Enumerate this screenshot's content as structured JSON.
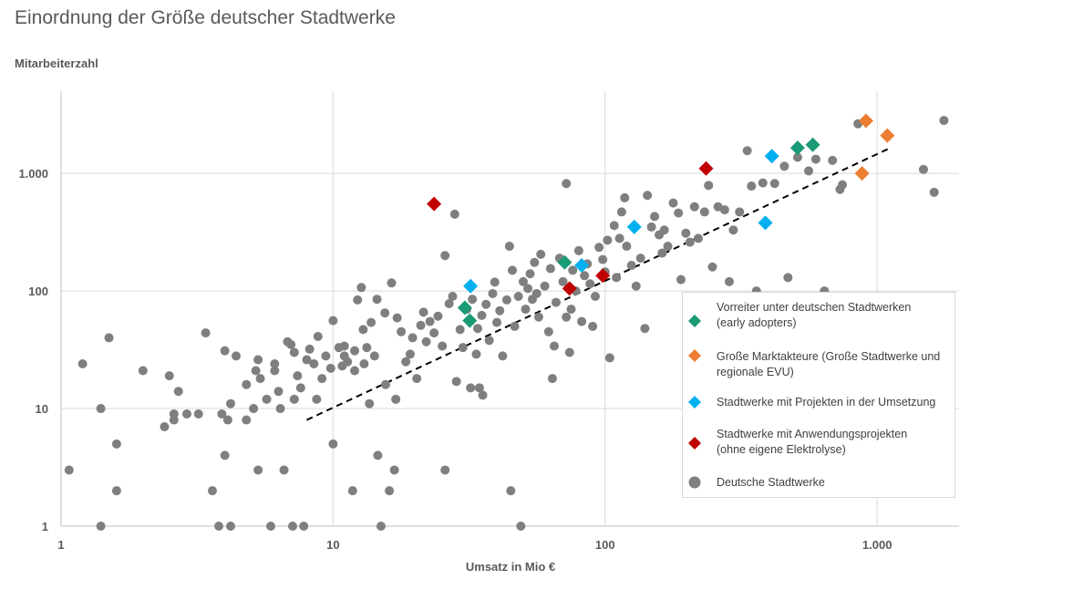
{
  "title": "Einordnung der Größe deutscher Stadtwerke",
  "chart_data": {
    "type": "scatter",
    "title": "Einordnung der Größe deutscher Stadtwerke",
    "xlabel": "Umsatz in Mio €",
    "ylabel": "Mitarbeiterzahl",
    "x_scale": "log",
    "y_scale": "log",
    "xlim": [
      1,
      2000
    ],
    "ylim": [
      1,
      5000
    ],
    "x_ticks": [
      {
        "value": 1,
        "label": "1"
      },
      {
        "value": 10,
        "label": "10"
      },
      {
        "value": 100,
        "label": "100"
      },
      {
        "value": 1000,
        "label": "1.000"
      }
    ],
    "y_ticks": [
      {
        "value": 1,
        "label": "1"
      },
      {
        "value": 10,
        "label": "10"
      },
      {
        "value": 100,
        "label": "100"
      },
      {
        "value": 1000,
        "label": "1.000"
      }
    ],
    "grid": "vertical and horizontal major gridlines",
    "legend_position": "lower-right",
    "trendline": {
      "style": "dashed",
      "color": "#000000",
      "from": [
        8,
        8
      ],
      "to": [
        1120,
        1650
      ]
    },
    "series": [
      {
        "name": "Deutsche Stadtwerke",
        "marker": "circle",
        "color": "#7f7f7f",
        "points": [
          [
            1.07,
            3
          ],
          [
            1.2,
            24
          ],
          [
            1.4,
            10
          ],
          [
            1.4,
            1
          ],
          [
            1.5,
            40
          ],
          [
            1.6,
            5
          ],
          [
            1.6,
            2
          ],
          [
            2,
            21
          ],
          [
            2.4,
            7
          ],
          [
            2.5,
            19
          ],
          [
            2.6,
            9
          ],
          [
            2.6,
            8
          ],
          [
            2.7,
            14
          ],
          [
            2.9,
            9
          ],
          [
            3.2,
            9
          ],
          [
            3.4,
            44
          ],
          [
            3.6,
            2
          ],
          [
            3.8,
            1
          ],
          [
            3.9,
            9
          ],
          [
            4,
            31
          ],
          [
            4,
            4
          ],
          [
            4.1,
            8
          ],
          [
            4.2,
            1
          ],
          [
            4.2,
            11
          ],
          [
            4.4,
            28
          ],
          [
            4.8,
            8
          ],
          [
            4.8,
            16
          ],
          [
            5.1,
            10
          ],
          [
            5.2,
            21
          ],
          [
            5.3,
            26
          ],
          [
            5.4,
            18
          ],
          [
            5.3,
            3
          ],
          [
            5.7,
            12
          ],
          [
            5.9,
            1
          ],
          [
            6.1,
            24
          ],
          [
            6.1,
            21
          ],
          [
            6.3,
            14
          ],
          [
            6.4,
            10
          ],
          [
            6.6,
            3
          ],
          [
            6.8,
            37
          ],
          [
            7,
            35
          ],
          [
            7.1,
            1
          ],
          [
            7.2,
            12
          ],
          [
            7.2,
            30
          ],
          [
            7.4,
            19
          ],
          [
            7.6,
            15
          ],
          [
            7.8,
            1
          ],
          [
            8,
            26
          ],
          [
            8.2,
            32
          ],
          [
            8.5,
            24
          ],
          [
            8.7,
            12
          ],
          [
            8.8,
            41
          ],
          [
            9.1,
            18
          ],
          [
            9.4,
            28
          ],
          [
            9.8,
            22
          ],
          [
            10,
            56
          ],
          [
            10,
            5
          ],
          [
            10.5,
            33
          ],
          [
            10.8,
            23
          ],
          [
            11,
            28
          ],
          [
            11,
            34
          ],
          [
            11.3,
            25
          ],
          [
            11.8,
            2
          ],
          [
            12,
            21
          ],
          [
            12,
            31
          ],
          [
            12.3,
            84
          ],
          [
            12.7,
            107
          ],
          [
            12.9,
            47
          ],
          [
            13,
            24
          ],
          [
            13.3,
            33
          ],
          [
            13.6,
            11
          ],
          [
            13.8,
            54
          ],
          [
            14.2,
            28
          ],
          [
            14.5,
            85
          ],
          [
            14.6,
            4
          ],
          [
            15,
            1
          ],
          [
            15.5,
            65
          ],
          [
            15.6,
            16
          ],
          [
            16.1,
            2
          ],
          [
            16.4,
            117
          ],
          [
            16.8,
            3
          ],
          [
            17,
            12
          ],
          [
            17.2,
            59
          ],
          [
            17.8,
            45
          ],
          [
            18.5,
            25
          ],
          [
            19.2,
            29
          ],
          [
            19.6,
            40
          ],
          [
            20.3,
            18
          ],
          [
            21,
            51
          ],
          [
            21.5,
            66
          ],
          [
            22,
            37
          ],
          [
            22.7,
            55
          ],
          [
            23.5,
            44
          ],
          [
            24.3,
            61
          ],
          [
            25.2,
            34
          ],
          [
            25.8,
            200
          ],
          [
            25.8,
            3
          ],
          [
            26.7,
            78
          ],
          [
            27.5,
            90
          ],
          [
            28,
            450
          ],
          [
            28.4,
            17
          ],
          [
            29.3,
            47
          ],
          [
            30,
            33
          ],
          [
            31,
            70
          ],
          [
            32,
            15
          ],
          [
            32.5,
            85
          ],
          [
            33.6,
            29
          ],
          [
            34,
            48
          ],
          [
            34.5,
            15
          ],
          [
            35.2,
            62
          ],
          [
            35.5,
            13
          ],
          [
            36.5,
            77
          ],
          [
            37.5,
            38
          ],
          [
            38.6,
            95
          ],
          [
            39.3,
            119
          ],
          [
            40,
            54
          ],
          [
            41,
            68
          ],
          [
            42,
            28
          ],
          [
            43.5,
            84
          ],
          [
            44.5,
            240
          ],
          [
            45,
            2
          ],
          [
            45.6,
            150
          ],
          [
            46.5,
            50
          ],
          [
            48,
            90
          ],
          [
            49,
            1
          ],
          [
            50,
            120
          ],
          [
            51,
            70
          ],
          [
            52,
            105
          ],
          [
            53,
            140
          ],
          [
            54,
            85
          ],
          [
            55,
            175
          ],
          [
            56,
            95
          ],
          [
            57,
            60
          ],
          [
            58,
            205
          ],
          [
            60,
            110
          ],
          [
            62,
            45
          ],
          [
            63,
            155
          ],
          [
            64,
            18
          ],
          [
            65,
            34
          ],
          [
            66,
            80
          ],
          [
            68,
            190
          ],
          [
            70,
            120
          ],
          [
            72,
            60
          ],
          [
            72,
            820
          ],
          [
            74,
            30
          ],
          [
            75,
            70
          ],
          [
            76,
            150
          ],
          [
            78,
            100
          ],
          [
            80,
            220
          ],
          [
            82,
            55
          ],
          [
            84,
            135
          ],
          [
            86,
            170
          ],
          [
            88,
            115
          ],
          [
            90,
            50
          ],
          [
            92,
            90
          ],
          [
            95,
            235
          ],
          [
            98,
            185
          ],
          [
            100,
            145
          ],
          [
            102,
            270
          ],
          [
            104,
            27
          ],
          [
            108,
            360
          ],
          [
            110,
            130
          ],
          [
            113,
            280
          ],
          [
            115,
            470
          ],
          [
            118,
            620
          ],
          [
            120,
            240
          ],
          [
            125,
            165
          ],
          [
            130,
            110
          ],
          [
            135,
            190
          ],
          [
            140,
            48
          ],
          [
            143,
            650
          ],
          [
            148,
            350
          ],
          [
            152,
            430
          ],
          [
            158,
            300
          ],
          [
            162,
            210
          ],
          [
            165,
            330
          ],
          [
            170,
            240
          ],
          [
            178,
            560
          ],
          [
            186,
            460
          ],
          [
            190,
            125
          ],
          [
            198,
            310
          ],
          [
            205,
            260
          ],
          [
            213,
            520
          ],
          [
            220,
            280
          ],
          [
            232,
            470
          ],
          [
            240,
            790
          ],
          [
            248,
            160
          ],
          [
            260,
            520
          ],
          [
            275,
            490
          ],
          [
            286,
            120
          ],
          [
            296,
            330
          ],
          [
            312,
            470
          ],
          [
            333,
            1560
          ],
          [
            345,
            780
          ],
          [
            360,
            100
          ],
          [
            380,
            830
          ],
          [
            392,
            90
          ],
          [
            420,
            820
          ],
          [
            456,
            1150
          ],
          [
            470,
            130
          ],
          [
            510,
            1370
          ],
          [
            560,
            1050
          ],
          [
            595,
            1320
          ],
          [
            640,
            100
          ],
          [
            685,
            1290
          ],
          [
            730,
            730
          ],
          [
            745,
            800
          ],
          [
            850,
            2640
          ],
          [
            1480,
            1080
          ],
          [
            1620,
            690
          ],
          [
            1760,
            2820
          ]
        ]
      },
      {
        "name": "Vorreiter unter deutschen Stadtwerken (early adopters)",
        "marker": "diamond",
        "color": "#1b9a77",
        "points": [
          [
            30.5,
            72
          ],
          [
            31.8,
            56
          ],
          [
            71,
            175
          ],
          [
            510,
            1650
          ],
          [
            580,
            1750
          ]
        ]
      },
      {
        "name": "Große Marktakteure (Große Stadtwerke und regionale EVU)",
        "marker": "diamond",
        "color": "#ed7d31",
        "points": [
          [
            880,
            1000
          ],
          [
            910,
            2800
          ],
          [
            1090,
            2100
          ]
        ]
      },
      {
        "name": "Stadtwerke mit Projekten in der Umsetzung",
        "marker": "diamond",
        "color": "#00b0f0",
        "points": [
          [
            32,
            110
          ],
          [
            82,
            165
          ],
          [
            128,
            350
          ],
          [
            388,
            380
          ],
          [
            410,
            1400
          ]
        ]
      },
      {
        "name": "Stadtwerke mit Anwendungsprojekten (ohne eigene Elektrolyse)",
        "marker": "diamond",
        "color": "#c00000",
        "points": [
          [
            23.5,
            550
          ],
          [
            74,
            105
          ],
          [
            98,
            135
          ],
          [
            235,
            1100
          ]
        ]
      }
    ]
  },
  "legend": {
    "items": [
      {
        "line1": "Vorreiter unter deutschen Stadtwerken",
        "line2": "(early adopters)",
        "color": "#1b9a77",
        "marker": "diamond"
      },
      {
        "line1": "Große Marktakteure (Große Stadtwerke und",
        "line2": "regionale EVU)",
        "color": "#ed7d31",
        "marker": "diamond"
      },
      {
        "line1": "Stadtwerke mit Projekten in der Umsetzung",
        "line2": "",
        "color": "#00b0f0",
        "marker": "diamond"
      },
      {
        "line1": "Stadtwerke mit Anwendungsprojekten",
        "line2": "(ohne eigene Elektrolyse)",
        "color": "#c00000",
        "marker": "diamond"
      },
      {
        "line1": "Deutsche Stadtwerke",
        "line2": "",
        "color": "#7f7f7f",
        "marker": "circle"
      }
    ]
  }
}
